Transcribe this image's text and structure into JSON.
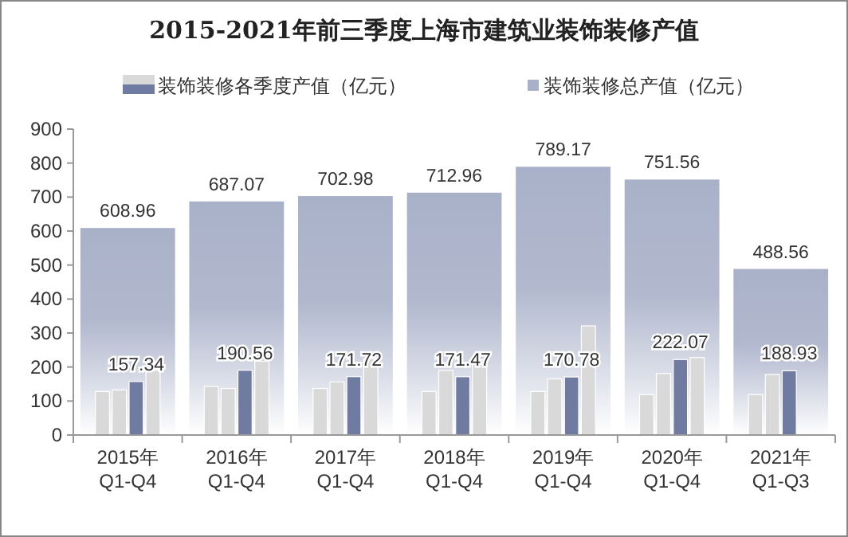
{
  "chart_data": {
    "type": "bar",
    "title": "2015-2021年前三季度上海市建筑业装饰装修产值",
    "categories": [
      "2015年\nQ1-Q4",
      "2016年\nQ1-Q4",
      "2017年\nQ1-Q4",
      "2018年\nQ1-Q4",
      "2019年\nQ1-Q4",
      "2020年\nQ1-Q4",
      "2021年\nQ1-Q3"
    ],
    "series": [
      {
        "name": "装饰装修总产值（亿元）",
        "color": "#a9b1c9",
        "values": [
          608.96,
          687.07,
          702.98,
          712.96,
          789.17,
          751.56,
          488.56
        ],
        "value_labels": [
          "608.96",
          "687.07",
          "702.98",
          "712.96",
          "789.17",
          "751.56",
          "488.56"
        ]
      },
      {
        "color": "#d9d9d9",
        "values": [
          128,
          143,
          137,
          128,
          128,
          119,
          119
        ]
      },
      {
        "color": "#d9d9d9",
        "values": [
          133,
          137,
          156,
          190,
          165,
          181,
          178
        ]
      },
      {
        "name": "装饰装修各季度产值（亿元）",
        "color": "#6f7ba0",
        "values": [
          157.34,
          190.56,
          171.72,
          171.47,
          170.78,
          222.07,
          188.93
        ],
        "value_labels": [
          "157.34",
          "190.56",
          "171.72",
          "171.47",
          "170.78",
          "222.07",
          "188.93"
        ]
      },
      {
        "color": "#d9d9d9",
        "values": [
          190,
          217,
          225,
          222,
          321,
          228,
          null
        ]
      }
    ],
    "ylim": [
      0,
      900
    ],
    "yticks": [
      0,
      100,
      200,
      300,
      400,
      500,
      600,
      700,
      800,
      900
    ],
    "grid": false,
    "legend": "top"
  }
}
